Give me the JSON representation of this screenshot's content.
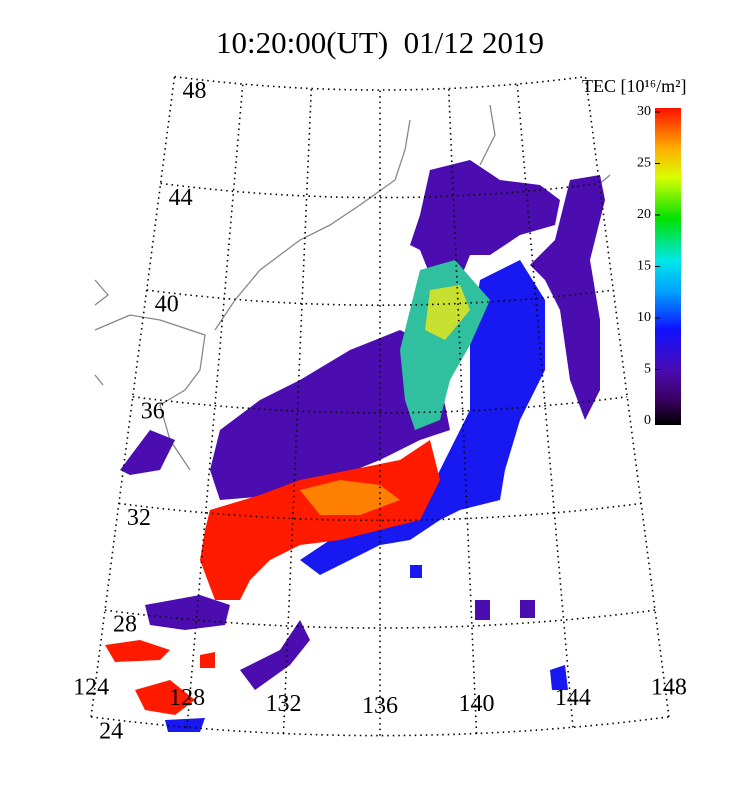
{
  "title": "10:20:00(UT)  01/12 2019",
  "colorbar": {
    "label": "TEC [10¹⁶/m²]",
    "lim": [
      0,
      30
    ],
    "ticks": [
      0,
      5,
      10,
      15,
      20,
      25,
      30
    ]
  },
  "latitudes": [
    48,
    44,
    40,
    36,
    32,
    28,
    24
  ],
  "longitudes": [
    124,
    128,
    132,
    136,
    140,
    144,
    148
  ]
}
